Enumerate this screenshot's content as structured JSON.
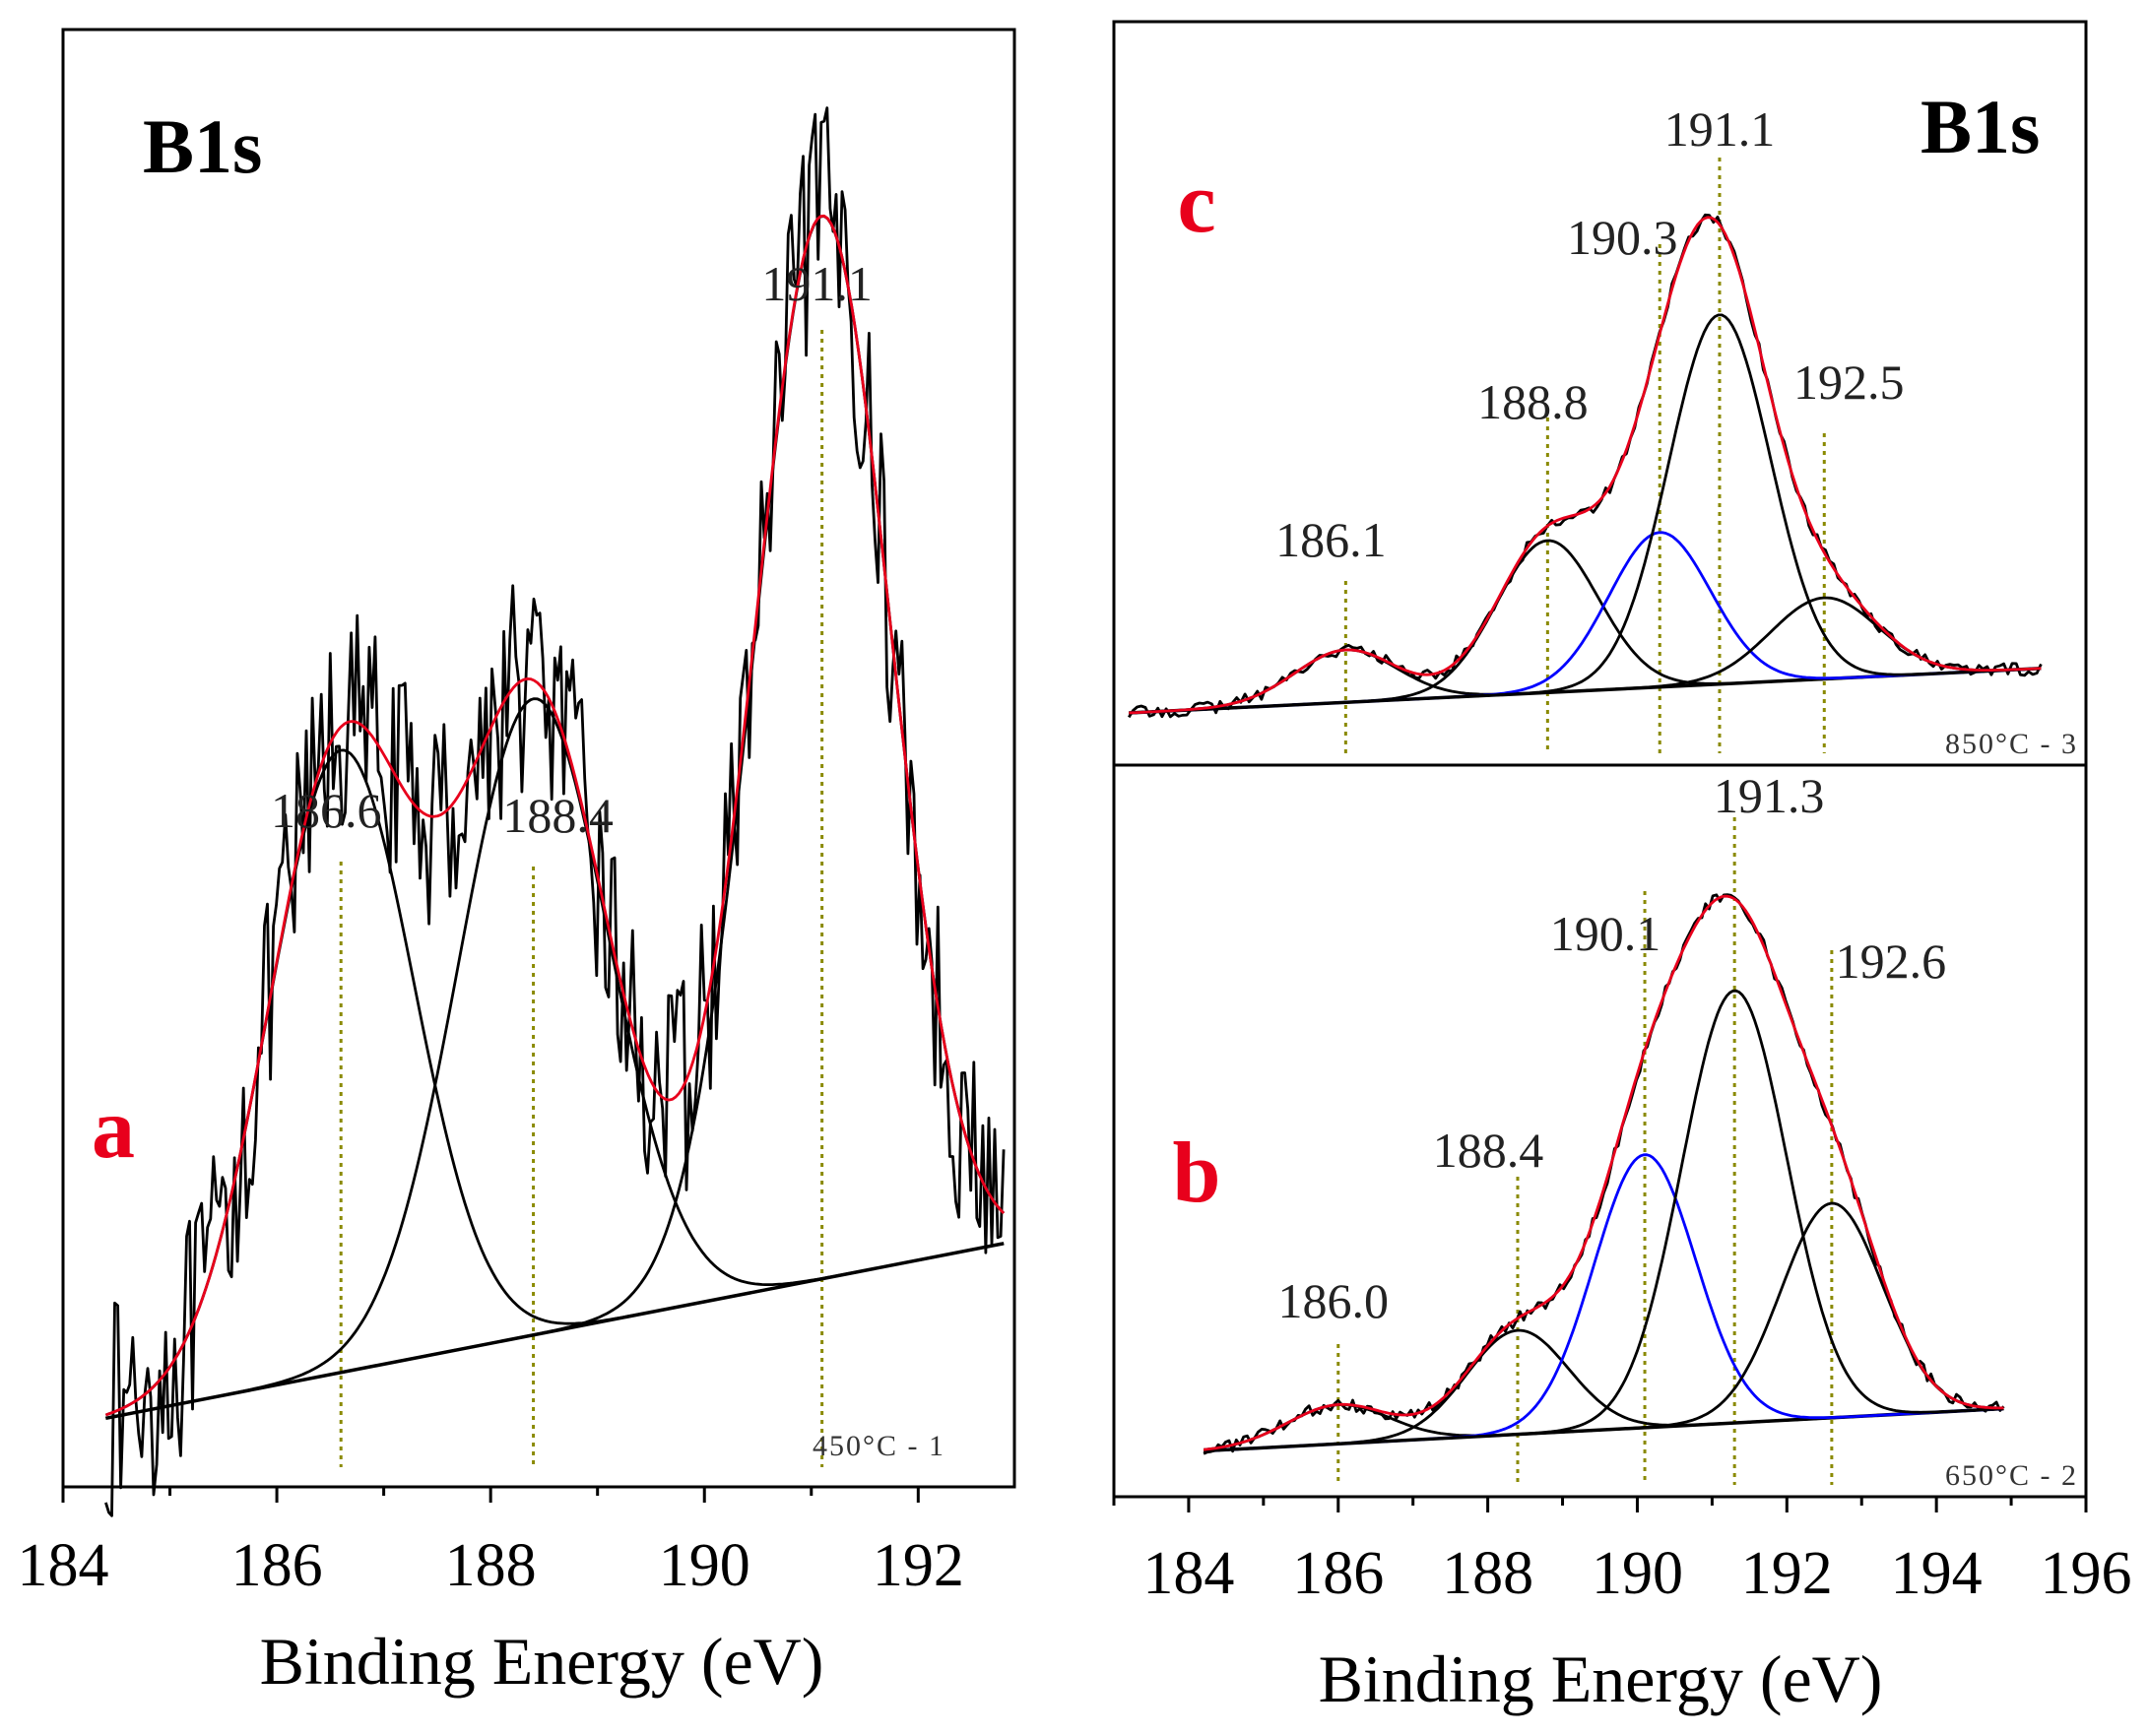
{
  "chart_data": [
    {
      "panel": "a",
      "type": "line",
      "title": "B1s",
      "panel_label": "a",
      "sample_label": "450°C - 1",
      "xlabel": "Binding Energy (eV)",
      "ylabel": "",
      "xlim": [
        184,
        192.9
      ],
      "ylim": [
        0,
        1
      ],
      "xticks": [
        184,
        186,
        188,
        190,
        192
      ],
      "background": {
        "x": [
          184.4,
          192.8
        ],
        "y": [
          0.035,
          0.16
        ]
      },
      "components": [
        {
          "name": "peak 186.6",
          "center": 186.6,
          "height": 0.445,
          "fwhm": 1.6,
          "color": "#000000"
        },
        {
          "name": "peak 188.4",
          "center": 188.4,
          "height": 0.455,
          "fwhm": 1.65,
          "color": "#000000"
        },
        {
          "name": "peak 191.1",
          "center": 191.1,
          "height": 0.76,
          "fwhm": 1.5,
          "color": "#000000"
        }
      ],
      "peak_labels": [
        "186.6",
        "188.4",
        "191.1"
      ],
      "peak_positions": [
        186.6,
        188.4,
        191.1
      ],
      "raw_noise_amplitude": 0.05,
      "colors": {
        "raw": "#000000",
        "envelope": "#e8001c",
        "component": "#000000",
        "guide": "#8a8a00",
        "panel_label": "#e8001c"
      }
    },
    {
      "panel": "c",
      "type": "line",
      "title": "B1s",
      "panel_label": "c",
      "sample_label": "850°C - 3",
      "xlabel": "",
      "ylabel": "",
      "xlim": [
        183,
        196
      ],
      "ylim": [
        0,
        1
      ],
      "xticks": [],
      "background": {
        "x": [
          183.2,
          195.4
        ],
        "y": [
          0.015,
          0.1
        ]
      },
      "components": [
        {
          "name": "peak 186.1",
          "center": 186.1,
          "height": 0.1,
          "fwhm": 1.6,
          "color": "#000000"
        },
        {
          "name": "peak 188.8",
          "center": 188.8,
          "height": 0.29,
          "fwhm": 1.6,
          "color": "#000000"
        },
        {
          "name": "peak 190.3",
          "center": 190.3,
          "height": 0.295,
          "fwhm": 1.6,
          "color": "#0000ff"
        },
        {
          "name": "peak 191.1",
          "center": 191.1,
          "height": 0.705,
          "fwhm": 1.6,
          "color": "#000000"
        },
        {
          "name": "peak 192.5",
          "center": 192.5,
          "height": 0.155,
          "fwhm": 1.7,
          "color": "#000000"
        }
      ],
      "peak_labels": [
        "186.1",
        "188.8",
        "190.3",
        "191.1",
        "192.5"
      ],
      "peak_positions": [
        186.1,
        188.8,
        190.3,
        191.1,
        192.5
      ],
      "raw_noise_amplitude": 0.012,
      "colors": {
        "raw": "#000000",
        "envelope": "#e8001c",
        "component": "#000000",
        "guide": "#8a8a00",
        "panel_label": "#e8001c"
      }
    },
    {
      "panel": "b",
      "type": "line",
      "title": "",
      "panel_label": "b",
      "sample_label": "650°C - 2",
      "xlabel": "Binding Energy (eV)",
      "ylabel": "",
      "xlim": [
        183,
        196
      ],
      "ylim": [
        0,
        1
      ],
      "xticks": [
        184,
        186,
        188,
        190,
        192,
        194,
        196
      ],
      "background": {
        "x": [
          184.2,
          194.9
        ],
        "y": [
          0.025,
          0.09
        ]
      },
      "components": [
        {
          "name": "peak 186.0",
          "center": 186.0,
          "height": 0.06,
          "fwhm": 1.6,
          "color": "#000000"
        },
        {
          "name": "peak 188.4",
          "center": 188.4,
          "height": 0.16,
          "fwhm": 1.6,
          "color": "#000000"
        },
        {
          "name": "peak 190.1",
          "center": 190.1,
          "height": 0.42,
          "fwhm": 1.6,
          "color": "#0000ff"
        },
        {
          "name": "peak 191.3",
          "center": 191.3,
          "height": 0.665,
          "fwhm": 1.65,
          "color": "#000000"
        },
        {
          "name": "peak 192.6",
          "center": 192.6,
          "height": 0.33,
          "fwhm": 1.6,
          "color": "#000000"
        }
      ],
      "peak_labels": [
        "186.0",
        "188.4",
        "190.1",
        "191.3",
        "192.6"
      ],
      "peak_positions": [
        186.0,
        188.4,
        190.1,
        191.3,
        192.6
      ],
      "raw_noise_amplitude": 0.01,
      "colors": {
        "raw": "#000000",
        "envelope": "#e8001c",
        "component": "#000000",
        "guide": "#8a8a00",
        "panel_label": "#e8001c"
      }
    }
  ]
}
